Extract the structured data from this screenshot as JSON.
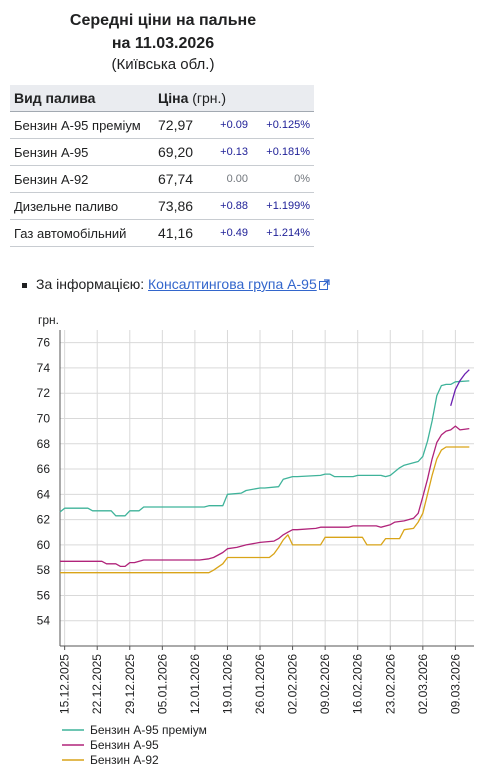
{
  "header": {
    "title": "Середні ціни на пальне",
    "date": "на 11.03.2026",
    "region": "(Київська обл.)"
  },
  "table": {
    "col_fuel": "Вид палива",
    "col_price": "Ціна",
    "col_unit": "(грн.)",
    "rows": [
      {
        "name": "Бензин А-95 преміум",
        "price": "72,97",
        "abs": "+0.09",
        "pct": "+0.125%"
      },
      {
        "name": "Бензин А-95",
        "price": "69,20",
        "abs": "+0.13",
        "pct": "+0.181%"
      },
      {
        "name": "Бензин А-92",
        "price": "67,74",
        "abs": "0.00",
        "pct": "0%"
      },
      {
        "name": "Дизельне паливо",
        "price": "73,86",
        "abs": "+0.88",
        "pct": "+1.199%"
      },
      {
        "name": "Газ автомобільний",
        "price": "41,16",
        "abs": "+0.49",
        "pct": "+1.214%"
      }
    ]
  },
  "source": {
    "prefix": "За інформацією: ",
    "link_text": "Консалтингова група А-95",
    "icon": "external-link-icon"
  },
  "chart_data": {
    "type": "line",
    "ylabel": "грн.",
    "ylim": [
      52,
      77
    ],
    "yticks": [
      54,
      56,
      58,
      60,
      62,
      64,
      66,
      68,
      70,
      72,
      74,
      76
    ],
    "xlim": [
      "2025-12-14",
      "2026-03-13"
    ],
    "xtick_labels": [
      "15.12.2025",
      "22.12.2025",
      "29.12.2025",
      "05.01.2026",
      "12.01.2026",
      "19.01.2026",
      "26.01.2026",
      "02.02.2026",
      "09.02.2026",
      "16.02.2026",
      "23.02.2026",
      "02.03.2026",
      "09.03.2026"
    ],
    "xtick_dates": [
      "2025-12-15",
      "2025-12-22",
      "2025-12-29",
      "2026-01-05",
      "2026-01-12",
      "2026-01-19",
      "2026-01-26",
      "2026-02-02",
      "2026-02-09",
      "2026-02-16",
      "2026-02-23",
      "2026-03-02",
      "2026-03-09"
    ],
    "grid": true,
    "legend_position": "bottom-left",
    "series": [
      {
        "name": "Бензин А-95 преміум",
        "color": "#3fb39a",
        "dates": [
          "2025-12-14",
          "2025-12-15",
          "2025-12-20",
          "2025-12-21",
          "2025-12-25",
          "2025-12-26",
          "2025-12-28",
          "2025-12-29",
          "2025-12-31",
          "2026-01-01",
          "2026-01-02",
          "2026-01-14",
          "2026-01-15",
          "2026-01-18",
          "2026-01-19",
          "2026-01-22",
          "2026-01-23",
          "2026-01-26",
          "2026-01-27",
          "2026-01-30",
          "2026-01-31",
          "2026-02-02",
          "2026-02-03",
          "2026-02-08",
          "2026-02-09",
          "2026-02-10",
          "2026-02-11",
          "2026-02-15",
          "2026-02-16",
          "2026-02-21",
          "2026-02-22",
          "2026-02-23",
          "2026-02-25",
          "2026-02-26",
          "2026-02-28",
          "2026-03-01",
          "2026-03-02",
          "2026-03-03",
          "2026-03-04",
          "2026-03-05",
          "2026-03-06",
          "2026-03-07",
          "2026-03-08",
          "2026-03-09",
          "2026-03-12"
        ],
        "values": [
          62.6,
          62.9,
          62.9,
          62.7,
          62.7,
          62.3,
          62.3,
          62.7,
          62.7,
          63.0,
          63.0,
          63.0,
          63.1,
          63.1,
          64.0,
          64.1,
          64.3,
          64.5,
          64.5,
          64.6,
          65.2,
          65.4,
          65.4,
          65.5,
          65.6,
          65.6,
          65.4,
          65.4,
          65.5,
          65.5,
          65.4,
          65.5,
          66.1,
          66.3,
          66.5,
          66.6,
          67.0,
          68.2,
          69.8,
          71.8,
          72.6,
          72.7,
          72.7,
          72.9,
          72.97
        ]
      },
      {
        "name": "Бензин А-95",
        "color": "#b0237a",
        "dates": [
          "2025-12-14",
          "2025-12-15",
          "2025-12-23",
          "2025-12-24",
          "2025-12-26",
          "2025-12-27",
          "2025-12-28",
          "2025-12-29",
          "2025-12-30",
          "2026-01-01",
          "2026-01-12",
          "2026-01-13",
          "2026-01-15",
          "2026-01-16",
          "2026-01-17",
          "2026-01-18",
          "2026-01-19",
          "2026-01-21",
          "2026-01-23",
          "2026-01-26",
          "2026-01-29",
          "2026-01-30",
          "2026-01-31",
          "2026-02-01",
          "2026-02-02",
          "2026-02-03",
          "2026-02-07",
          "2026-02-08",
          "2026-02-14",
          "2026-02-15",
          "2026-02-20",
          "2026-02-21",
          "2026-02-23",
          "2026-02-24",
          "2026-02-26",
          "2026-02-28",
          "2026-03-01",
          "2026-03-02",
          "2026-03-03",
          "2026-03-04",
          "2026-03-05",
          "2026-03-06",
          "2026-03-07",
          "2026-03-08",
          "2026-03-09",
          "2026-03-10",
          "2026-03-12"
        ],
        "values": [
          58.7,
          58.7,
          58.7,
          58.5,
          58.5,
          58.3,
          58.3,
          58.6,
          58.6,
          58.8,
          58.8,
          58.8,
          58.9,
          59.0,
          59.2,
          59.4,
          59.7,
          59.8,
          60.0,
          60.2,
          60.3,
          60.5,
          60.8,
          61.0,
          61.2,
          61.2,
          61.3,
          61.4,
          61.4,
          61.5,
          61.5,
          61.4,
          61.6,
          61.8,
          61.9,
          62.1,
          62.5,
          63.8,
          65.2,
          66.8,
          68.1,
          68.7,
          69.0,
          69.1,
          69.4,
          69.1,
          69.2
        ]
      },
      {
        "name": "Бензин А-92",
        "color": "#d9a418",
        "dates": [
          "2025-12-14",
          "2026-01-14",
          "2026-01-15",
          "2026-01-16",
          "2026-01-18",
          "2026-01-19",
          "2026-01-28",
          "2026-01-29",
          "2026-01-30",
          "2026-01-31",
          "2026-02-01",
          "2026-02-02",
          "2026-02-08",
          "2026-02-09",
          "2026-02-17",
          "2026-02-18",
          "2026-02-21",
          "2026-02-22",
          "2026-02-25",
          "2026-02-26",
          "2026-02-28",
          "2026-03-01",
          "2026-03-02",
          "2026-03-03",
          "2026-03-04",
          "2026-03-05",
          "2026-03-06",
          "2026-03-07",
          "2026-03-12"
        ],
        "values": [
          57.8,
          57.8,
          57.8,
          58.0,
          58.5,
          59.0,
          59.0,
          59.3,
          59.8,
          60.4,
          60.8,
          60.0,
          60.0,
          60.6,
          60.6,
          60.0,
          60.0,
          60.5,
          60.5,
          61.2,
          61.3,
          61.8,
          62.5,
          64.0,
          65.5,
          66.8,
          67.5,
          67.74,
          67.74
        ]
      },
      {
        "name": "Дизельне паливо",
        "color": "#6a1fb0",
        "legend": false,
        "dates": [
          "2026-03-08",
          "2026-03-09",
          "2026-03-10",
          "2026-03-11",
          "2026-03-12"
        ],
        "values": [
          71.0,
          72.3,
          73.0,
          73.5,
          73.86
        ]
      }
    ]
  }
}
